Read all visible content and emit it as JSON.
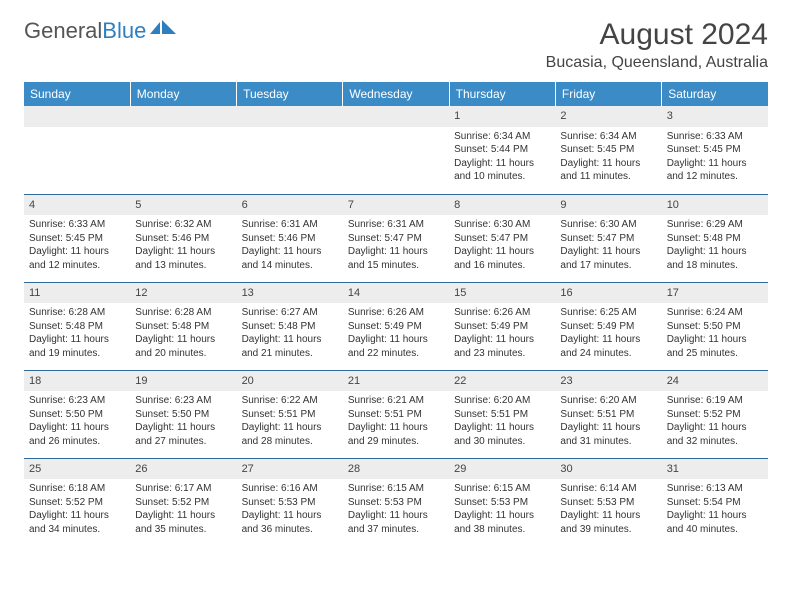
{
  "logo": {
    "text1": "General",
    "text2": "Blue"
  },
  "title": "August 2024",
  "location": "Bucasia, Queensland, Australia",
  "colors": {
    "header_bg": "#3b8bc7",
    "header_text": "#ffffff",
    "daynum_bg": "#ededed",
    "row_border": "#2f6a9a",
    "logo_blue": "#2f7fbf",
    "text": "#333333",
    "title_text": "#444444"
  },
  "weekdays": [
    "Sunday",
    "Monday",
    "Tuesday",
    "Wednesday",
    "Thursday",
    "Friday",
    "Saturday"
  ],
  "weeks": [
    [
      null,
      null,
      null,
      null,
      {
        "day": "1",
        "sunrise": "Sunrise: 6:34 AM",
        "sunset": "Sunset: 5:44 PM",
        "daylight": "Daylight: 11 hours and 10 minutes."
      },
      {
        "day": "2",
        "sunrise": "Sunrise: 6:34 AM",
        "sunset": "Sunset: 5:45 PM",
        "daylight": "Daylight: 11 hours and 11 minutes."
      },
      {
        "day": "3",
        "sunrise": "Sunrise: 6:33 AM",
        "sunset": "Sunset: 5:45 PM",
        "daylight": "Daylight: 11 hours and 12 minutes."
      }
    ],
    [
      {
        "day": "4",
        "sunrise": "Sunrise: 6:33 AM",
        "sunset": "Sunset: 5:45 PM",
        "daylight": "Daylight: 11 hours and 12 minutes."
      },
      {
        "day": "5",
        "sunrise": "Sunrise: 6:32 AM",
        "sunset": "Sunset: 5:46 PM",
        "daylight": "Daylight: 11 hours and 13 minutes."
      },
      {
        "day": "6",
        "sunrise": "Sunrise: 6:31 AM",
        "sunset": "Sunset: 5:46 PM",
        "daylight": "Daylight: 11 hours and 14 minutes."
      },
      {
        "day": "7",
        "sunrise": "Sunrise: 6:31 AM",
        "sunset": "Sunset: 5:47 PM",
        "daylight": "Daylight: 11 hours and 15 minutes."
      },
      {
        "day": "8",
        "sunrise": "Sunrise: 6:30 AM",
        "sunset": "Sunset: 5:47 PM",
        "daylight": "Daylight: 11 hours and 16 minutes."
      },
      {
        "day": "9",
        "sunrise": "Sunrise: 6:30 AM",
        "sunset": "Sunset: 5:47 PM",
        "daylight": "Daylight: 11 hours and 17 minutes."
      },
      {
        "day": "10",
        "sunrise": "Sunrise: 6:29 AM",
        "sunset": "Sunset: 5:48 PM",
        "daylight": "Daylight: 11 hours and 18 minutes."
      }
    ],
    [
      {
        "day": "11",
        "sunrise": "Sunrise: 6:28 AM",
        "sunset": "Sunset: 5:48 PM",
        "daylight": "Daylight: 11 hours and 19 minutes."
      },
      {
        "day": "12",
        "sunrise": "Sunrise: 6:28 AM",
        "sunset": "Sunset: 5:48 PM",
        "daylight": "Daylight: 11 hours and 20 minutes."
      },
      {
        "day": "13",
        "sunrise": "Sunrise: 6:27 AM",
        "sunset": "Sunset: 5:48 PM",
        "daylight": "Daylight: 11 hours and 21 minutes."
      },
      {
        "day": "14",
        "sunrise": "Sunrise: 6:26 AM",
        "sunset": "Sunset: 5:49 PM",
        "daylight": "Daylight: 11 hours and 22 minutes."
      },
      {
        "day": "15",
        "sunrise": "Sunrise: 6:26 AM",
        "sunset": "Sunset: 5:49 PM",
        "daylight": "Daylight: 11 hours and 23 minutes."
      },
      {
        "day": "16",
        "sunrise": "Sunrise: 6:25 AM",
        "sunset": "Sunset: 5:49 PM",
        "daylight": "Daylight: 11 hours and 24 minutes."
      },
      {
        "day": "17",
        "sunrise": "Sunrise: 6:24 AM",
        "sunset": "Sunset: 5:50 PM",
        "daylight": "Daylight: 11 hours and 25 minutes."
      }
    ],
    [
      {
        "day": "18",
        "sunrise": "Sunrise: 6:23 AM",
        "sunset": "Sunset: 5:50 PM",
        "daylight": "Daylight: 11 hours and 26 minutes."
      },
      {
        "day": "19",
        "sunrise": "Sunrise: 6:23 AM",
        "sunset": "Sunset: 5:50 PM",
        "daylight": "Daylight: 11 hours and 27 minutes."
      },
      {
        "day": "20",
        "sunrise": "Sunrise: 6:22 AM",
        "sunset": "Sunset: 5:51 PM",
        "daylight": "Daylight: 11 hours and 28 minutes."
      },
      {
        "day": "21",
        "sunrise": "Sunrise: 6:21 AM",
        "sunset": "Sunset: 5:51 PM",
        "daylight": "Daylight: 11 hours and 29 minutes."
      },
      {
        "day": "22",
        "sunrise": "Sunrise: 6:20 AM",
        "sunset": "Sunset: 5:51 PM",
        "daylight": "Daylight: 11 hours and 30 minutes."
      },
      {
        "day": "23",
        "sunrise": "Sunrise: 6:20 AM",
        "sunset": "Sunset: 5:51 PM",
        "daylight": "Daylight: 11 hours and 31 minutes."
      },
      {
        "day": "24",
        "sunrise": "Sunrise: 6:19 AM",
        "sunset": "Sunset: 5:52 PM",
        "daylight": "Daylight: 11 hours and 32 minutes."
      }
    ],
    [
      {
        "day": "25",
        "sunrise": "Sunrise: 6:18 AM",
        "sunset": "Sunset: 5:52 PM",
        "daylight": "Daylight: 11 hours and 34 minutes."
      },
      {
        "day": "26",
        "sunrise": "Sunrise: 6:17 AM",
        "sunset": "Sunset: 5:52 PM",
        "daylight": "Daylight: 11 hours and 35 minutes."
      },
      {
        "day": "27",
        "sunrise": "Sunrise: 6:16 AM",
        "sunset": "Sunset: 5:53 PM",
        "daylight": "Daylight: 11 hours and 36 minutes."
      },
      {
        "day": "28",
        "sunrise": "Sunrise: 6:15 AM",
        "sunset": "Sunset: 5:53 PM",
        "daylight": "Daylight: 11 hours and 37 minutes."
      },
      {
        "day": "29",
        "sunrise": "Sunrise: 6:15 AM",
        "sunset": "Sunset: 5:53 PM",
        "daylight": "Daylight: 11 hours and 38 minutes."
      },
      {
        "day": "30",
        "sunrise": "Sunrise: 6:14 AM",
        "sunset": "Sunset: 5:53 PM",
        "daylight": "Daylight: 11 hours and 39 minutes."
      },
      {
        "day": "31",
        "sunrise": "Sunrise: 6:13 AM",
        "sunset": "Sunset: 5:54 PM",
        "daylight": "Daylight: 11 hours and 40 minutes."
      }
    ]
  ]
}
